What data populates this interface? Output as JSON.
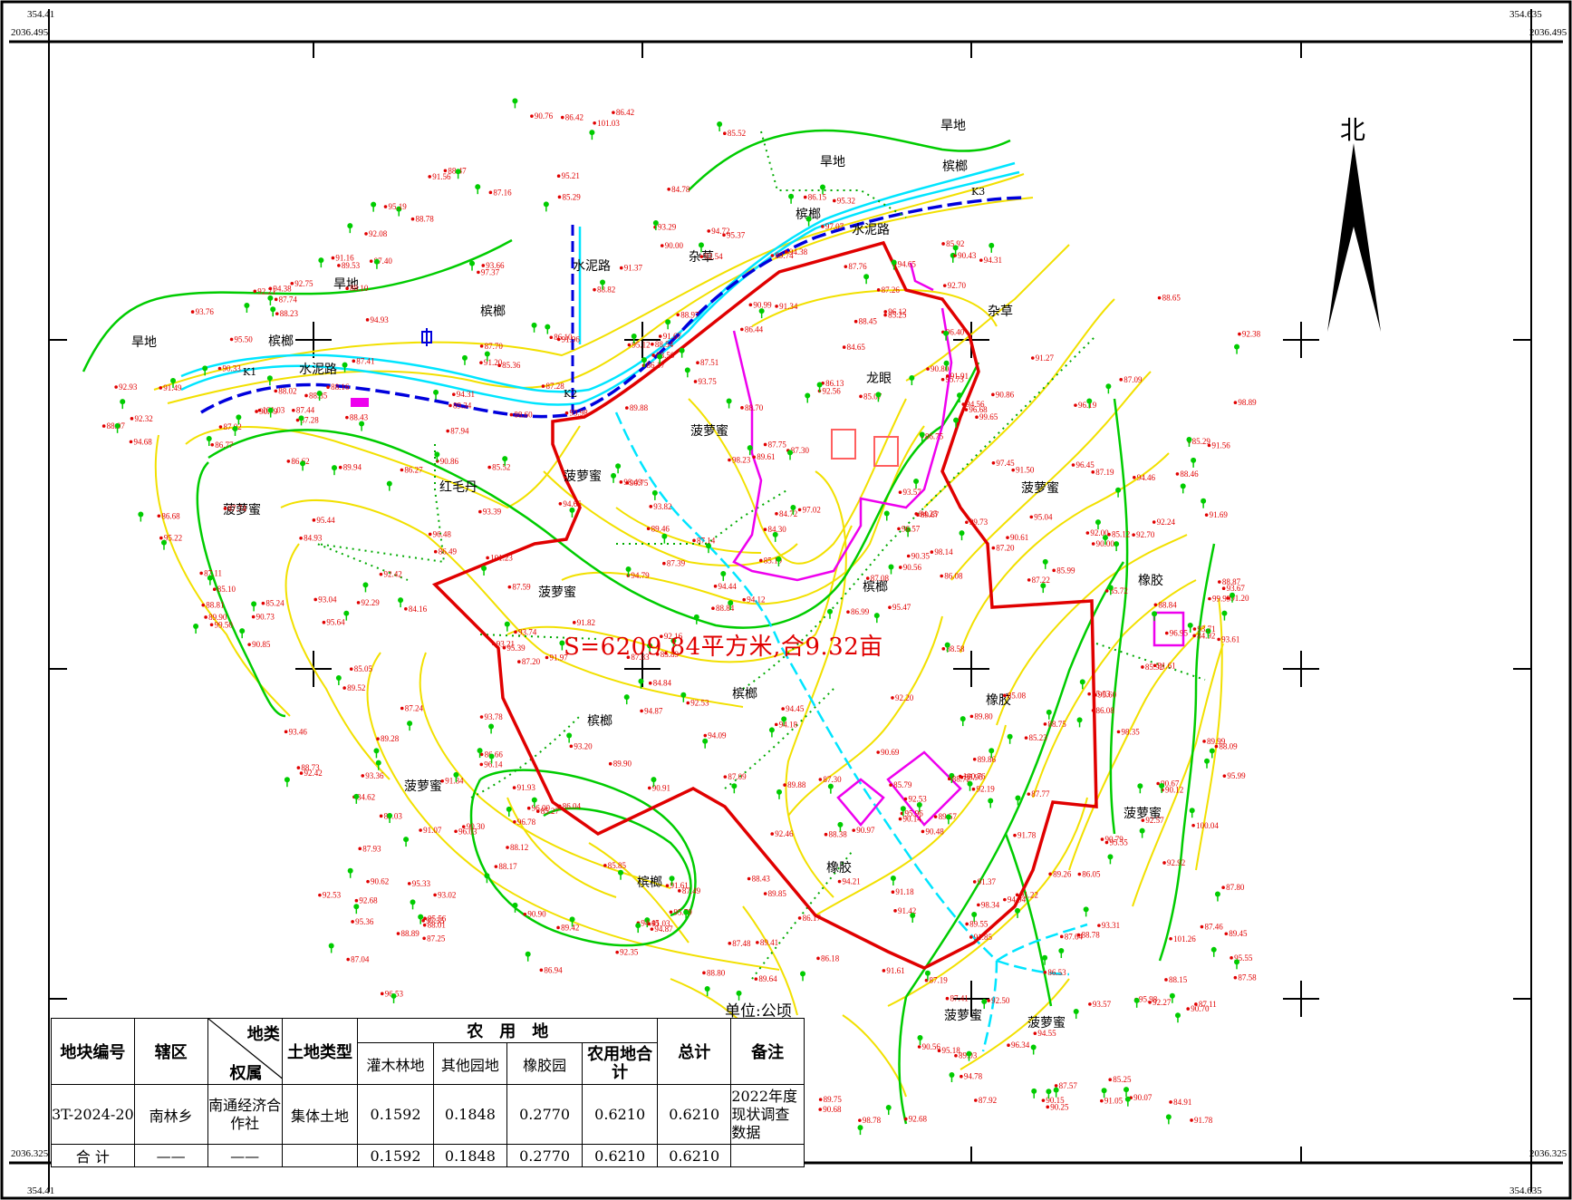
{
  "corners": {
    "tl_x": "354.41",
    "tl_y": "2036.495",
    "tr_x": "354.635",
    "tr_y": "2036.495",
    "bl_x": "354.41",
    "bl_y": "2036.325",
    "br_x": "354.635",
    "br_y": "2036.325"
  },
  "north_label": "北",
  "area_label": "S=6209.84平方米,合9.32亩",
  "unit_label": "单位:公顷",
  "colors": {
    "boundary": "#e00000",
    "contour_index": "#00cc00",
    "contour": "#f2e000",
    "road": "#00e5ff",
    "road_dash": "#0000dd",
    "parcel": "#ee00ee",
    "elevation": "#e00000"
  },
  "table": {
    "h_id": "地块编号",
    "h_district": "辖区",
    "h_landclass": "地类",
    "h_owner": "权属",
    "h_landtype": "土地类型",
    "h_farmland": "农　用　地",
    "h_shrub": "灌木林地",
    "h_othergarden": "其他园地",
    "h_rubber": "橡胶园",
    "h_farm_total": "农用地合计",
    "h_total": "总计",
    "h_note": "备注",
    "row": {
      "id": "3T-2024-20",
      "district": "南林乡",
      "owner": "南通经济合作社",
      "landtype": "集体土地",
      "shrub": "0.1592",
      "othergarden": "0.1848",
      "rubber": "0.2770",
      "farm_total": "0.6210",
      "total": "0.6210",
      "note": "2022年度现状调查数据"
    },
    "sum": {
      "label": "合 计",
      "district": "——",
      "owner": "——",
      "shrub": "0.1592",
      "othergarden": "0.1848",
      "rubber": "0.2770",
      "farm_total": "0.6210",
      "total": "0.6210"
    }
  },
  "map_labels": [
    {
      "t": "旱地"
    },
    {
      "t": "旱地"
    },
    {
      "t": "旱地"
    },
    {
      "t": "旱地"
    },
    {
      "t": "槟榔"
    },
    {
      "t": "槟榔"
    },
    {
      "t": "槟榔"
    },
    {
      "t": "槟榔"
    },
    {
      "t": "槟榔"
    },
    {
      "t": "槟榔"
    },
    {
      "t": "槟榔"
    },
    {
      "t": "槟榔"
    },
    {
      "t": "水泥路"
    },
    {
      "t": "水泥路"
    },
    {
      "t": "水泥路"
    },
    {
      "t": "杂草"
    },
    {
      "t": "杂草"
    },
    {
      "t": "龙眼"
    },
    {
      "t": "红毛丹"
    },
    {
      "t": "菠萝蜜"
    },
    {
      "t": "菠萝蜜"
    },
    {
      "t": "菠萝蜜"
    },
    {
      "t": "菠萝蜜"
    },
    {
      "t": "菠萝蜜"
    },
    {
      "t": "菠萝蜜"
    },
    {
      "t": "菠萝蜜"
    },
    {
      "t": "菠萝蜜"
    },
    {
      "t": "菠萝蜜"
    },
    {
      "t": "橡胶"
    },
    {
      "t": "橡胶"
    },
    {
      "t": "橡胶"
    },
    {
      "t": "K1"
    },
    {
      "t": "K2"
    },
    {
      "t": "K3"
    }
  ],
  "elevations": [
    "84.84",
    "84.78",
    "84.30",
    "84.62",
    "84.91",
    "84.93",
    "85.07",
    "85.05",
    "85.52",
    "85.72",
    "85.96",
    "86.04",
    "85.29",
    "85.99",
    "85.92",
    "86.05",
    "85.52",
    "85.27",
    "85.19",
    "86.08",
    "87.09",
    "85.79",
    "87.04",
    "86.53",
    "84.16",
    "85.56",
    "86.15",
    "86.42",
    "85.85",
    "86.13",
    "87.28",
    "87.20",
    "87.14",
    "87.08",
    "85.12",
    "85.92",
    "86.18",
    "87.09",
    "87.39",
    "87.59",
    "87.76",
    "88.23",
    "84.92",
    "84.65",
    "84.72",
    "86.62",
    "86.17",
    "86.08",
    "86.10",
    "87.19",
    "87.70",
    "88.54",
    "85.25",
    "85.29",
    "86.27",
    "86.17",
    "87.24",
    "87.30",
    "87.74",
    "88.58",
    "89.03",
    "91.20",
    "85.23",
    "85.24",
    "86.44",
    "86.99",
    "86.42",
    "86.49",
    "87.11",
    "87.58",
    "88.07",
    "88.60",
    "89.74",
    "92.08",
    "85.89",
    "87.16",
    "86.77",
    "87.22",
    "88.17",
    "89.28",
    "89.90",
    "85.25",
    "87.11",
    "86.68",
    "86.75",
    "87.20",
    "87.46",
    "88.43",
    "92.00",
    "85.08",
    "86.66",
    "88.09",
    "87.93",
    "86.94",
    "87.41",
    "87.44",
    "89.52",
    "90.33",
    "90.14",
    "90.97",
    "91.61",
    "87.92",
    "88.10",
    "88.01",
    "87.94",
    "87.80",
    "87.48",
    "87.25",
    "89.26",
    "85.10",
    "85.36",
    "88.02",
    "87.26",
    "87.75",
    "87.57",
    "87.51",
    "87.30",
    "87.19",
    "88.43",
    "89.67",
    "90.48",
    "90.68",
    "90.86",
    "87.64",
    "87.83",
    "87.77",
    "87.02",
    "87.49",
    "87.28",
    "88.46",
    "91.16",
    "95.22",
    "87.74",
    "89.55",
    "89.75",
    "88.65",
    "89.61",
    "88.70",
    "88.38",
    "89.57",
    "90.61",
    "91.07",
    "92.24",
    "93.20",
    "89.46",
    "90.25",
    "89.88",
    "89.34",
    "88.84",
    "88.50",
    "87.41",
    "88.16",
    "88.82",
    "91.20",
    "92.53",
    "90.56",
    "89.94",
    "90.07",
    "87.40",
    "88.73",
    "88.75",
    "89.03",
    "90.70",
    "92.27",
    "90.90",
    "94.38",
    "96.53",
    "88.15",
    "91.22",
    "90.67",
    "89.86",
    "89.53",
    "88.45",
    "88.12",
    "88.80",
    "89.64",
    "90.62",
    "91.37",
    "91.91",
    "95.18",
    "96.40",
    "98.49",
    "89.41",
    "91.37",
    "91.27",
    "90.79",
    "88.89",
    "88.81",
    "88.87",
    "90.43",
    "90.79",
    "92.68",
    "98.34",
    "99.73",
    "90.00",
    "92.29",
    "92.46",
    "91.49",
    "90.85",
    "88.78",
    "88.47",
    "88.97",
    "89.85",
    "90.15",
    "93.67",
    "90.30",
    "91.18",
    "92.53",
    "92.16",
    "90.12",
    "90.99",
    "88.84",
    "89.99",
    "89.42",
    "89.90",
    "91.50",
    "92.70",
    "97.07",
    "95.99",
    "88.72",
    "91.61",
    "92.92",
    "92.42",
    "91.56",
    "90.00",
    "89.80",
    "88.85",
    "90.76",
    "93.61",
    "93.98",
    "89.88",
    "91.05",
    "92.21",
    "91.78",
    "92.57",
    "92.19",
    "92.75",
    "90.73",
    "90.56",
    "90.86",
    "90.35",
    "90.69",
    "96.78",
    "101.03",
    "88.78",
    "91.84",
    "93.74",
    "92.70",
    "91.96",
    "90.91",
    "101.23",
    "89.45",
    "93.82",
    "93.66",
    "93.21",
    "91.42",
    "90.75",
    "92.53",
    "93.39",
    "96.95",
    "99.65",
    "93.29",
    "93.75",
    "92.50",
    "91.34",
    "97.37",
    "92.68",
    "94.45",
    "93.46",
    "91.61",
    "91.03",
    "92.54",
    "92.56",
    "95.12",
    "97.45",
    "90.80",
    "91.56",
    "94.45",
    "93.71",
    "91.69",
    "92.20",
    "93.57",
    "95.98",
    "100.76",
    "94.38",
    "91.93",
    "94.31",
    "92.35",
    "92.32",
    "96.14",
    "98.23",
    "99.99",
    "95.36",
    "94.09",
    "92.42",
    "93.04",
    "93.78",
    "94.87",
    "95.39",
    "95.60",
    "92.38",
    "92.93",
    "93.02",
    "95.55",
    "96.19",
    "98.14",
    "101.26",
    "95.19",
    "93.36",
    "94.21",
    "95.79",
    "96.68",
    "96.12",
    "95.55",
    "93.57",
    "93.76",
    "95.32",
    "97.35",
    "94.55",
    "95.33",
    "96.00",
    "91.82",
    "96.45",
    "98.35",
    "100.04",
    "94.68",
    "91.78",
    "94.93",
    "95.37",
    "97.02",
    "98.78",
    "94.66",
    "95.03",
    "94.65",
    "91.67",
    "99.50",
    "101.03",
    "94.12",
    "95.04",
    "91.85",
    "94.94",
    "96.03",
    "91.97",
    "94.87",
    "94.79",
    "94.78",
    "95.64",
    "95.50",
    "98.89",
    "94.31",
    "94.44",
    "94.46",
    "94.25",
    "95.44",
    "95.21",
    "96.57",
    "93.31",
    "94.18",
    "94.56",
    "95.96",
    "96.34",
    "95.73",
    "94.72",
    "96.48",
    "95.47"
  ]
}
